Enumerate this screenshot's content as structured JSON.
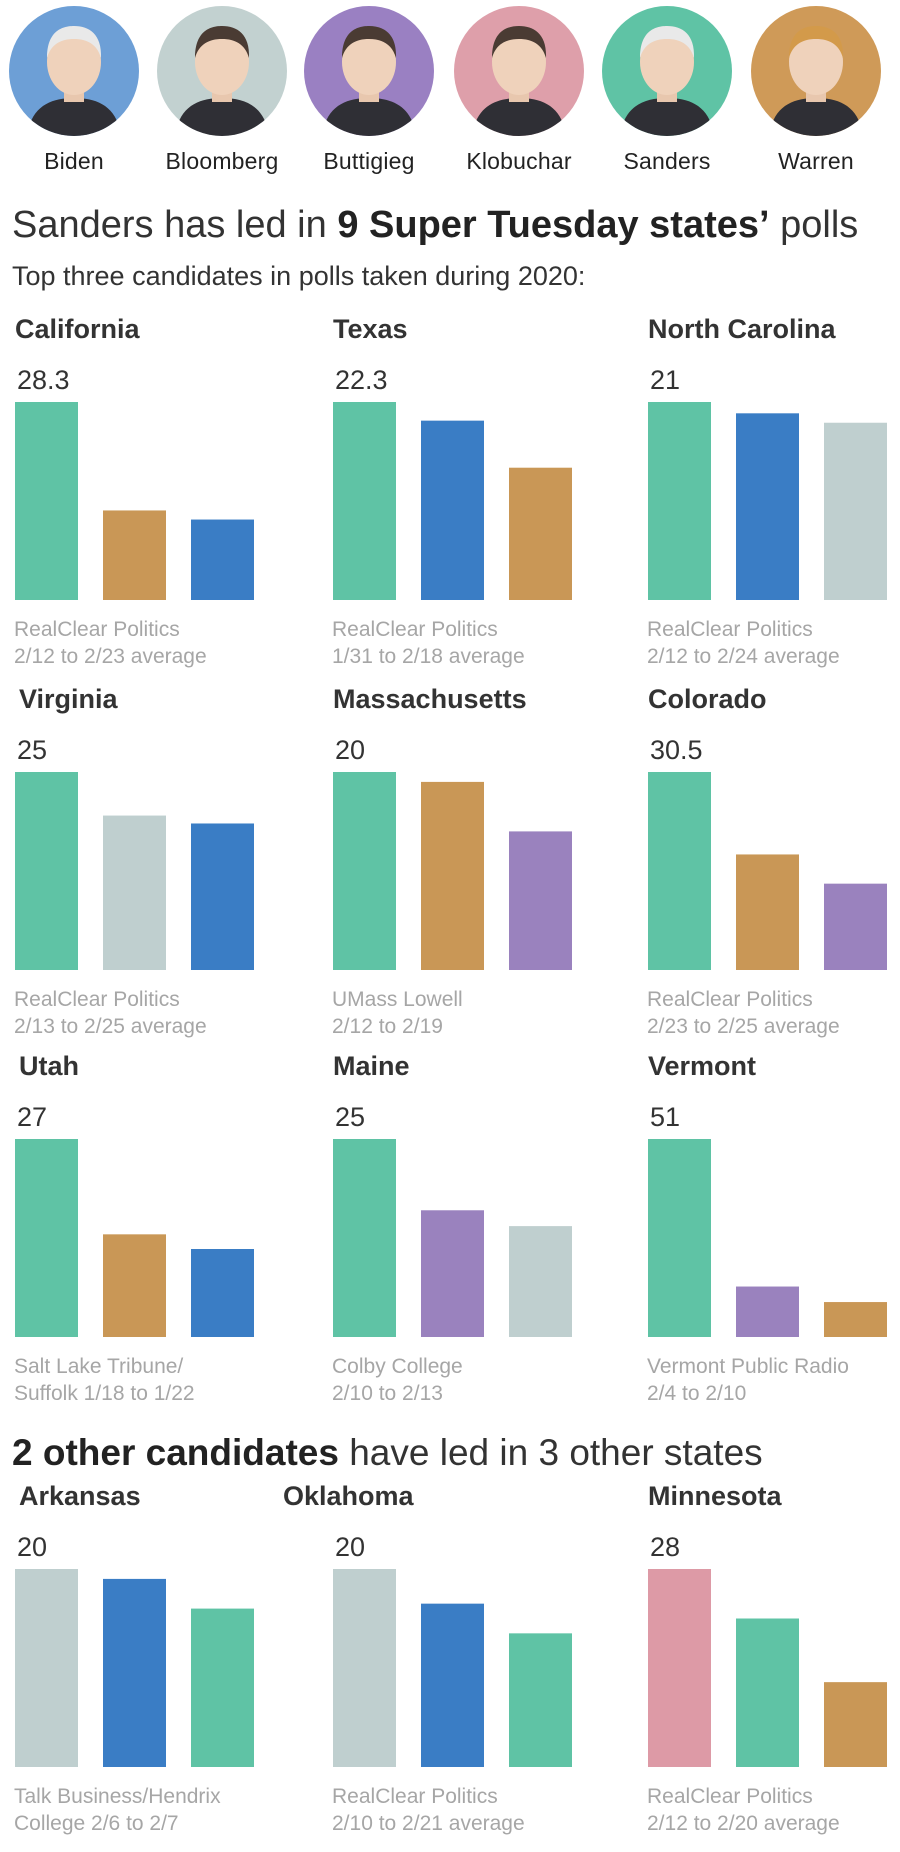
{
  "candidates": [
    {
      "name": "Biden",
      "color": "#6d9fd6"
    },
    {
      "name": "Bloomberg",
      "color": "#c2d1d0"
    },
    {
      "name": "Buttigieg",
      "color": "#9a80c2"
    },
    {
      "name": "Klobuchar",
      "color": "#de9faa"
    },
    {
      "name": "Sanders",
      "color": "#5fc3a5"
    },
    {
      "name": "Warren",
      "color": "#cf9a58"
    }
  ],
  "headline": {
    "pre": "Sanders has led in ",
    "bold": "9 Super Tuesday states’",
    "post": " polls"
  },
  "subheadline": "Top three candidates in polls taken during 2020:",
  "headline2": {
    "bold": "2 other candidates",
    "post": " have led in 3 other states"
  },
  "colors": {
    "Sanders": "#5fc3a5",
    "Biden": "#3a7dc5",
    "Bloomberg": "#bfcfcf",
    "Warren": "#c99756",
    "Buttigieg": "#9a82be",
    "Klobuchar": "#dd9aa6"
  },
  "chart_data": [
    {
      "type": "bar",
      "title": "California",
      "categories": [
        "Sanders",
        "Warren",
        "Biden"
      ],
      "values": [
        28.3,
        12.8,
        11.5
      ],
      "value_label": "28.3",
      "source": [
        "RealClear Politics",
        "2/12 to 2/23 average"
      ]
    },
    {
      "type": "bar",
      "title": "Texas",
      "categories": [
        "Sanders",
        "Biden",
        "Warren"
      ],
      "values": [
        22.3,
        20.2,
        14.9
      ],
      "value_label": "22.3",
      "source": [
        "RealClear Politics",
        "1/31 to 2/18 average"
      ]
    },
    {
      "type": "bar",
      "title": "North Carolina",
      "categories": [
        "Sanders",
        "Biden",
        "Bloomberg"
      ],
      "values": [
        21,
        19.8,
        18.8
      ],
      "value_label": "21",
      "source": [
        "RealClear Politics",
        "2/12 to 2/24 average"
      ]
    },
    {
      "type": "bar",
      "title": "Virginia",
      "categories": [
        "Sanders",
        "Bloomberg",
        "Biden"
      ],
      "values": [
        25,
        19.5,
        18.5
      ],
      "value_label": "25",
      "source": [
        "RealClear Politics",
        "2/13 to 2/25 average"
      ]
    },
    {
      "type": "bar",
      "title": "Massachusetts",
      "categories": [
        "Sanders",
        "Warren",
        "Buttigieg"
      ],
      "values": [
        20,
        19,
        14
      ],
      "value_label": "20",
      "source": [
        "UMass Lowell",
        "2/12 to 2/19"
      ]
    },
    {
      "type": "bar",
      "title": "Colorado",
      "categories": [
        "Sanders",
        "Warren",
        "Buttigieg"
      ],
      "values": [
        30.5,
        17.8,
        13.3
      ],
      "value_label": "30.5",
      "source": [
        "RealClear Politics",
        "2/23 to 2/25 average"
      ]
    },
    {
      "type": "bar",
      "title": "Utah",
      "categories": [
        "Sanders",
        "Warren",
        "Biden"
      ],
      "values": [
        27,
        14,
        12
      ],
      "value_label": "27",
      "source": [
        "Salt Lake Tribune/",
        "Suffolk 1/18 to 1/22"
      ]
    },
    {
      "type": "bar",
      "title": "Maine",
      "categories": [
        "Sanders",
        "Buttigieg",
        "Bloomberg"
      ],
      "values": [
        25,
        16,
        14
      ],
      "value_label": "25",
      "source": [
        "Colby College",
        "2/10 to 2/13"
      ]
    },
    {
      "type": "bar",
      "title": "Vermont",
      "categories": [
        "Sanders",
        "Buttigieg",
        "Warren"
      ],
      "values": [
        51,
        13,
        9
      ],
      "value_label": "51",
      "source": [
        "Vermont Public Radio",
        "2/4 to 2/10"
      ]
    },
    {
      "type": "bar",
      "title": "Arkansas",
      "categories": [
        "Bloomberg",
        "Biden",
        "Sanders"
      ],
      "values": [
        20,
        19,
        16
      ],
      "value_label": "20",
      "source": [
        "Talk Business/Hendrix",
        "College 2/6 to 2/7"
      ]
    },
    {
      "type": "bar",
      "title": "Oklahoma",
      "categories": [
        "Bloomberg",
        "Biden",
        "Sanders"
      ],
      "values": [
        20,
        16.5,
        13.5
      ],
      "value_label": "20",
      "source": [
        "RealClear Politics",
        "2/10 to 2/21 average"
      ]
    },
    {
      "type": "bar",
      "title": "Minnesota",
      "categories": [
        "Klobuchar",
        "Sanders",
        "Warren"
      ],
      "values": [
        28,
        21,
        12
      ],
      "value_label": "28",
      "source": [
        "RealClear Politics",
        "2/12 to 2/20 average"
      ]
    }
  ]
}
